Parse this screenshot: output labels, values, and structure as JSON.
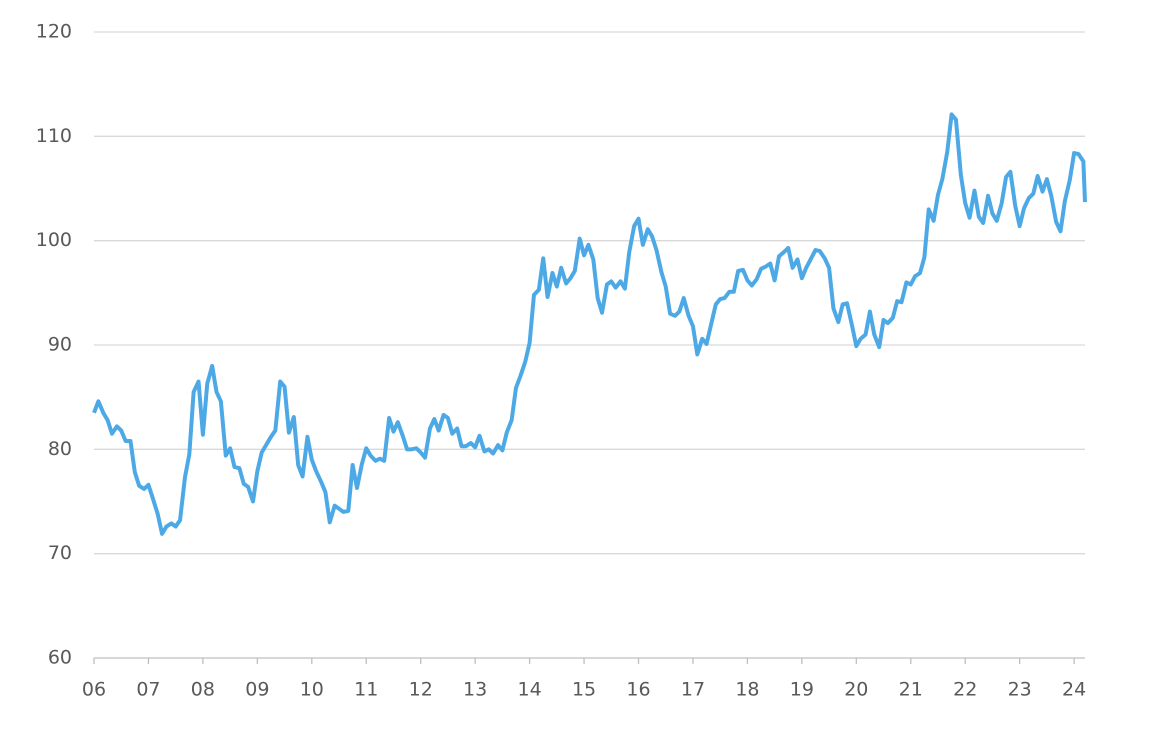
{
  "chart_data": {
    "type": "line",
    "x": [
      6,
      6.08,
      6.17,
      6.25,
      6.33,
      6.42,
      6.5,
      6.58,
      6.67,
      6.75,
      6.83,
      6.92,
      7,
      7.08,
      7.17,
      7.25,
      7.33,
      7.42,
      7.5,
      7.58,
      7.67,
      7.75,
      7.83,
      7.92,
      8,
      8.08,
      8.17,
      8.25,
      8.33,
      8.42,
      8.5,
      8.58,
      8.67,
      8.75,
      8.83,
      8.92,
      9,
      9.08,
      9.17,
      9.25,
      9.33,
      9.42,
      9.5,
      9.58,
      9.67,
      9.75,
      9.83,
      9.92,
      10,
      10.08,
      10.17,
      10.25,
      10.33,
      10.42,
      10.5,
      10.58,
      10.67,
      10.75,
      10.83,
      10.92,
      11,
      11.08,
      11.17,
      11.25,
      11.33,
      11.42,
      11.5,
      11.58,
      11.67,
      11.75,
      11.83,
      11.92,
      12,
      12.08,
      12.17,
      12.25,
      12.33,
      12.42,
      12.5,
      12.58,
      12.67,
      12.75,
      12.83,
      12.92,
      13,
      13.08,
      13.17,
      13.25,
      13.33,
      13.42,
      13.5,
      13.58,
      13.67,
      13.75,
      13.83,
      13.92,
      14,
      14.08,
      14.17,
      14.25,
      14.33,
      14.42,
      14.5,
      14.58,
      14.67,
      14.75,
      14.83,
      14.92,
      15,
      15.08,
      15.17,
      15.25,
      15.33,
      15.42,
      15.5,
      15.58,
      15.67,
      15.75,
      15.83,
      15.92,
      16,
      16.08,
      16.17,
      16.25,
      16.33,
      16.42,
      16.5,
      16.58,
      16.67,
      16.75,
      16.83,
      16.92,
      17,
      17.08,
      17.17,
      17.25,
      17.33,
      17.42,
      17.5,
      17.58,
      17.67,
      17.75,
      17.83,
      17.92,
      18,
      18.08,
      18.17,
      18.25,
      18.33,
      18.42,
      18.5,
      18.58,
      18.67,
      18.75,
      18.83,
      18.92,
      19,
      19.08,
      19.17,
      19.25,
      19.33,
      19.42,
      19.5,
      19.58,
      19.67,
      19.75,
      19.83,
      19.92,
      20,
      20.08,
      20.17,
      20.25,
      20.33,
      20.42,
      20.5,
      20.58,
      20.67,
      20.75,
      20.83,
      20.92,
      21,
      21.08,
      21.17,
      21.25,
      21.33,
      21.42,
      21.5,
      21.58,
      21.67,
      21.75,
      21.83,
      21.92,
      22,
      22.08,
      22.17,
      22.25,
      22.33,
      22.42,
      22.5,
      22.58,
      22.67,
      22.75,
      22.83,
      22.92,
      23,
      23.08,
      23.17,
      23.25,
      23.33,
      23.42,
      23.5,
      23.58,
      23.67,
      23.75,
      23.83,
      23.92,
      24,
      24.08,
      24.17,
      24.2
    ],
    "series": [
      {
        "color": "#4da9e6",
        "values": [
          83.5,
          84.6,
          83.5,
          82.8,
          81.5,
          82.2,
          81.8,
          80.8,
          80.8,
          77.8,
          76.5,
          76.2,
          76.6,
          75.3,
          73.8,
          71.9,
          72.6,
          72.9,
          72.6,
          73.2,
          77.3,
          79.5,
          85.5,
          86.5,
          81.4,
          86.3,
          88.0,
          85.5,
          84.6,
          79.4,
          80.1,
          78.3,
          78.2,
          76.7,
          76.4,
          75.0,
          77.9,
          79.7,
          80.5,
          81.2,
          81.8,
          86.5,
          86.0,
          81.6,
          83.1,
          78.5,
          77.4,
          81.2,
          79.0,
          77.9,
          76.9,
          75.9,
          73.0,
          74.6,
          74.3,
          74.0,
          74.1,
          78.5,
          76.3,
          78.6,
          80.1,
          79.4,
          78.9,
          79.1,
          78.9,
          83.0,
          81.7,
          82.6,
          81.3,
          80.0,
          80.0,
          80.1,
          79.7,
          79.2,
          82.0,
          82.9,
          81.8,
          83.3,
          83.0,
          81.5,
          82.0,
          80.3,
          80.3,
          80.6,
          80.2,
          81.3,
          79.8,
          80.0,
          79.6,
          80.4,
          79.9,
          81.6,
          82.8,
          85.9,
          87.0,
          88.4,
          90.2,
          94.8,
          95.3,
          98.3,
          94.6,
          96.9,
          95.6,
          97.4,
          95.9,
          96.4,
          97.1,
          100.2,
          98.6,
          99.6,
          98.2,
          94.5,
          93.1,
          95.8,
          96.1,
          95.5,
          96.1,
          95.4,
          98.9,
          101.4,
          102.1,
          99.6,
          101.1,
          100.4,
          99.1,
          97.0,
          95.6,
          93.0,
          92.8,
          93.2,
          94.5,
          92.8,
          91.8,
          89.1,
          90.6,
          90.1,
          91.9,
          93.9,
          94.4,
          94.5,
          95.1,
          95.1,
          97.1,
          97.2,
          96.2,
          95.7,
          96.3,
          97.3,
          97.5,
          97.8,
          96.2,
          98.5,
          98.9,
          99.3,
          97.4,
          98.2,
          96.4,
          97.4,
          98.3,
          99.1,
          99.0,
          98.3,
          97.4,
          93.5,
          92.2,
          93.9,
          94.0,
          91.9,
          89.9,
          90.6,
          91.0,
          93.2,
          91.0,
          89.8,
          92.4,
          92.1,
          92.6,
          94.2,
          94.1,
          96.0,
          95.8,
          96.6,
          96.9,
          98.4,
          103.0,
          101.9,
          104.4,
          105.9,
          108.5,
          112.1,
          111.6,
          106.3,
          103.6,
          102.2,
          104.8,
          102.3,
          101.7,
          104.3,
          102.6,
          101.9,
          103.6,
          106.1,
          106.6,
          103.3,
          101.4,
          103.1,
          104.1,
          104.5,
          106.2,
          104.7,
          105.9,
          104.3,
          101.8,
          100.9,
          103.8,
          105.8,
          108.4,
          108.3,
          107.6,
          103.7
        ]
      }
    ],
    "xlim": [
      6,
      24.2
    ],
    "xticks": [
      {
        "value": 6,
        "label": "06"
      },
      {
        "value": 7,
        "label": "07"
      },
      {
        "value": 8,
        "label": "08"
      },
      {
        "value": 9,
        "label": "09"
      },
      10,
      11,
      12,
      13,
      14,
      15,
      16,
      17,
      18,
      19,
      20,
      21,
      22,
      23,
      24
    ],
    "ylim": [
      60,
      120
    ],
    "yticks": [
      60,
      70,
      80,
      90,
      100,
      110,
      120
    ],
    "grid": true
  }
}
